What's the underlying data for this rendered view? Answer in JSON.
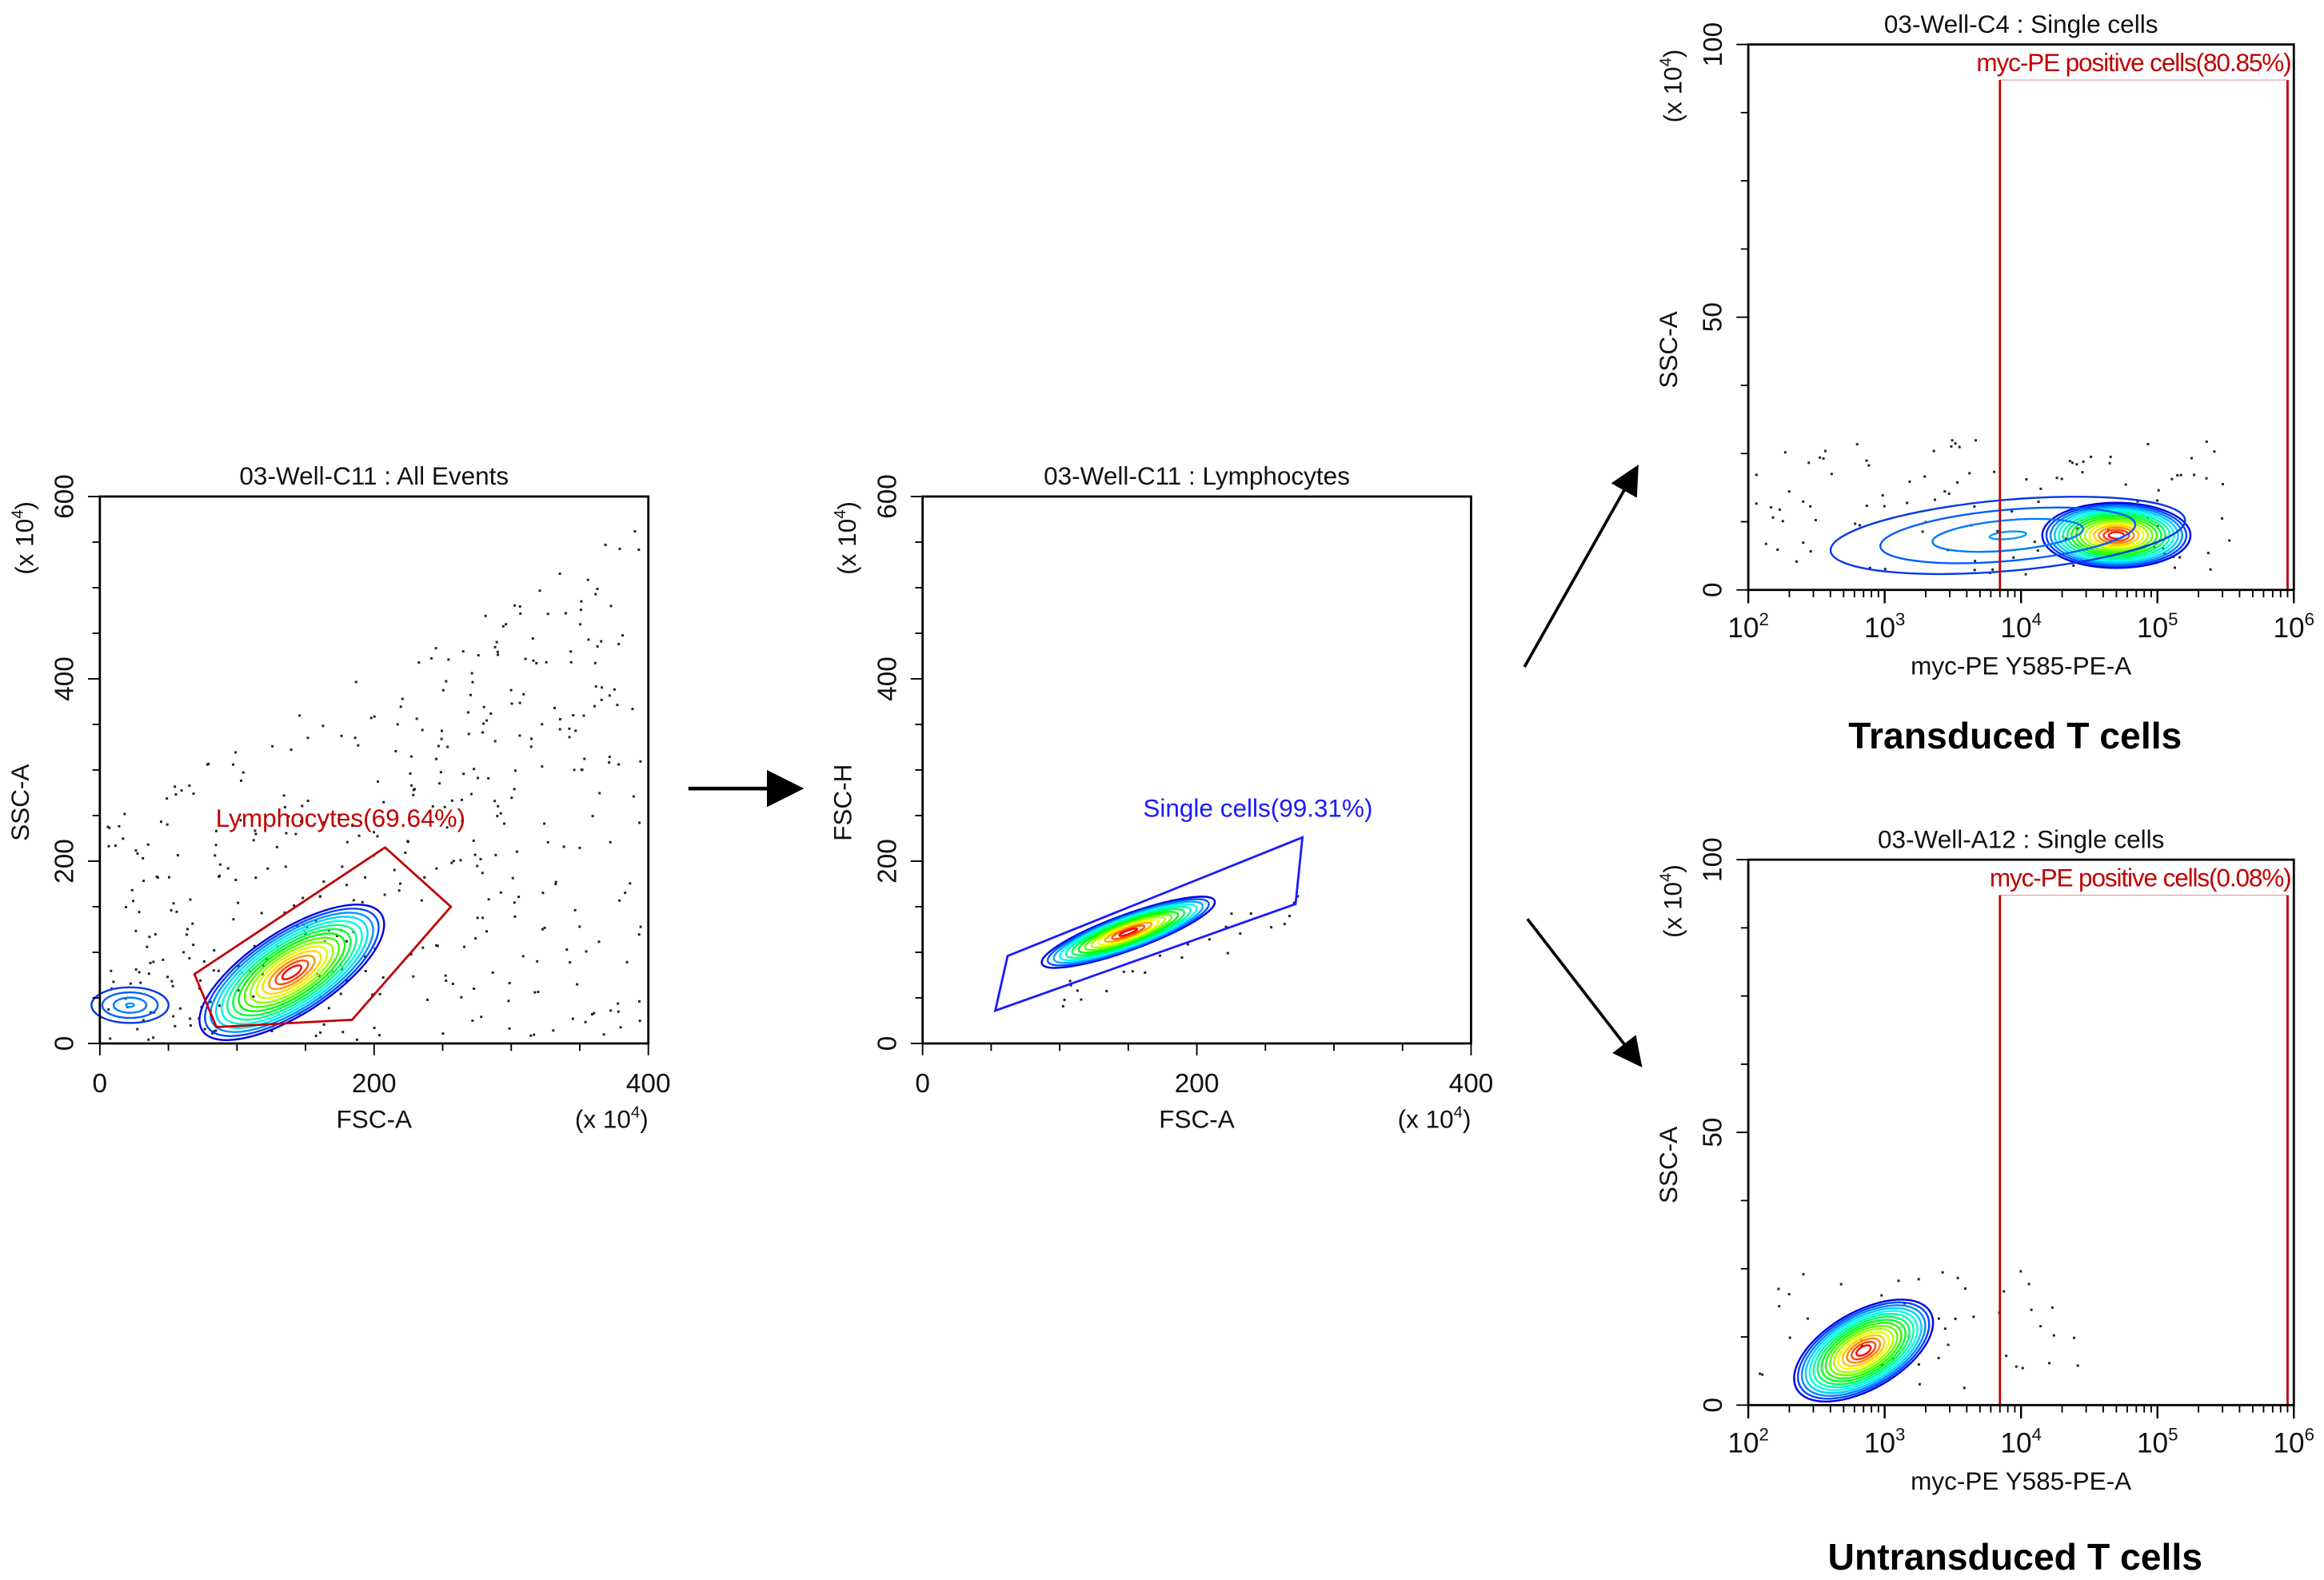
{
  "colors": {
    "gate_red": "#c00000",
    "gate_blue": "#1a1aff",
    "axis": "#000000"
  },
  "captions": {
    "transduced": "Transduced T cells",
    "untransduced": "Untransduced T cells"
  },
  "chart_data": [
    {
      "type": "scatter",
      "title": "03-Well-C11 : All Events",
      "xlabel": "FSC-A",
      "ylabel": "SSC-A",
      "x_scale": "linear",
      "xlim": [
        0,
        400
      ],
      "x_ticks": [
        "0",
        "200",
        "400"
      ],
      "x_multiplier": "(x 10",
      "x_multiplier_exp": "4",
      "y_scale": "linear",
      "ylim": [
        0,
        600
      ],
      "y_ticks": [
        "0",
        "200",
        "400",
        "600"
      ],
      "y_multiplier": "(x 10",
      "y_multiplier_exp": "4",
      "gate": {
        "type": "polygon",
        "label": "Lymphocytes(69.64%)",
        "color": "#c00000",
        "vertices": [
          [
            69,
            76
          ],
          [
            208,
            215
          ],
          [
            256,
            150
          ],
          [
            184,
            26
          ],
          [
            85,
            18
          ]
        ]
      }
    },
    {
      "type": "scatter",
      "title": "03-Well-C11 : Lymphocytes",
      "xlabel": "FSC-A",
      "ylabel": "FSC-H",
      "x_scale": "linear",
      "xlim": [
        0,
        400
      ],
      "x_ticks": [
        "0",
        "200",
        "400"
      ],
      "x_multiplier": "(x 10",
      "x_multiplier_exp": "4",
      "y_scale": "linear",
      "ylim": [
        0,
        600
      ],
      "y_ticks": [
        "0",
        "200",
        "400",
        "600"
      ],
      "y_multiplier": "(x 10",
      "y_multiplier_exp": "4",
      "gate": {
        "type": "polygon",
        "label": "Single cells(99.31%)",
        "color": "#1a1aff",
        "vertices": [
          [
            53,
            36
          ],
          [
            62,
            96
          ],
          [
            277,
            226
          ],
          [
            272,
            153
          ]
        ]
      }
    },
    {
      "type": "scatter",
      "title": "03-Well-C4 : Single cells",
      "xlabel": "myc-PE Y585-PE-A",
      "ylabel": "SSC-A",
      "x_scale": "log",
      "xlim": [
        100,
        1000000
      ],
      "x_ticks": [
        "10",
        "10",
        "10",
        "10",
        "10"
      ],
      "x_tick_exps": [
        "2",
        "3",
        "4",
        "5",
        "6"
      ],
      "y_scale": "linear",
      "ylim": [
        0,
        100
      ],
      "y_ticks": [
        "0",
        "50",
        "100"
      ],
      "y_multiplier": "(x 10",
      "y_multiplier_exp": "4",
      "gate": {
        "type": "range",
        "label": "myc-PE positive cells(80.85%)",
        "color": "#c00000",
        "range": [
          7000,
          900000
        ]
      }
    },
    {
      "type": "scatter",
      "title": "03-Well-A12 : Single cells",
      "xlabel": "myc-PE Y585-PE-A",
      "ylabel": "SSC-A",
      "x_scale": "log",
      "xlim": [
        100,
        1000000
      ],
      "x_ticks": [
        "10",
        "10",
        "10",
        "10",
        "10"
      ],
      "x_tick_exps": [
        "2",
        "3",
        "4",
        "5",
        "6"
      ],
      "y_scale": "linear",
      "ylim": [
        0,
        100
      ],
      "y_ticks": [
        "0",
        "50",
        "100"
      ],
      "y_multiplier": "(x 10",
      "y_multiplier_exp": "4",
      "gate": {
        "type": "range",
        "label": "myc-PE positive cells(0.08%)",
        "color": "#c00000",
        "range": [
          7000,
          900000
        ]
      }
    }
  ]
}
